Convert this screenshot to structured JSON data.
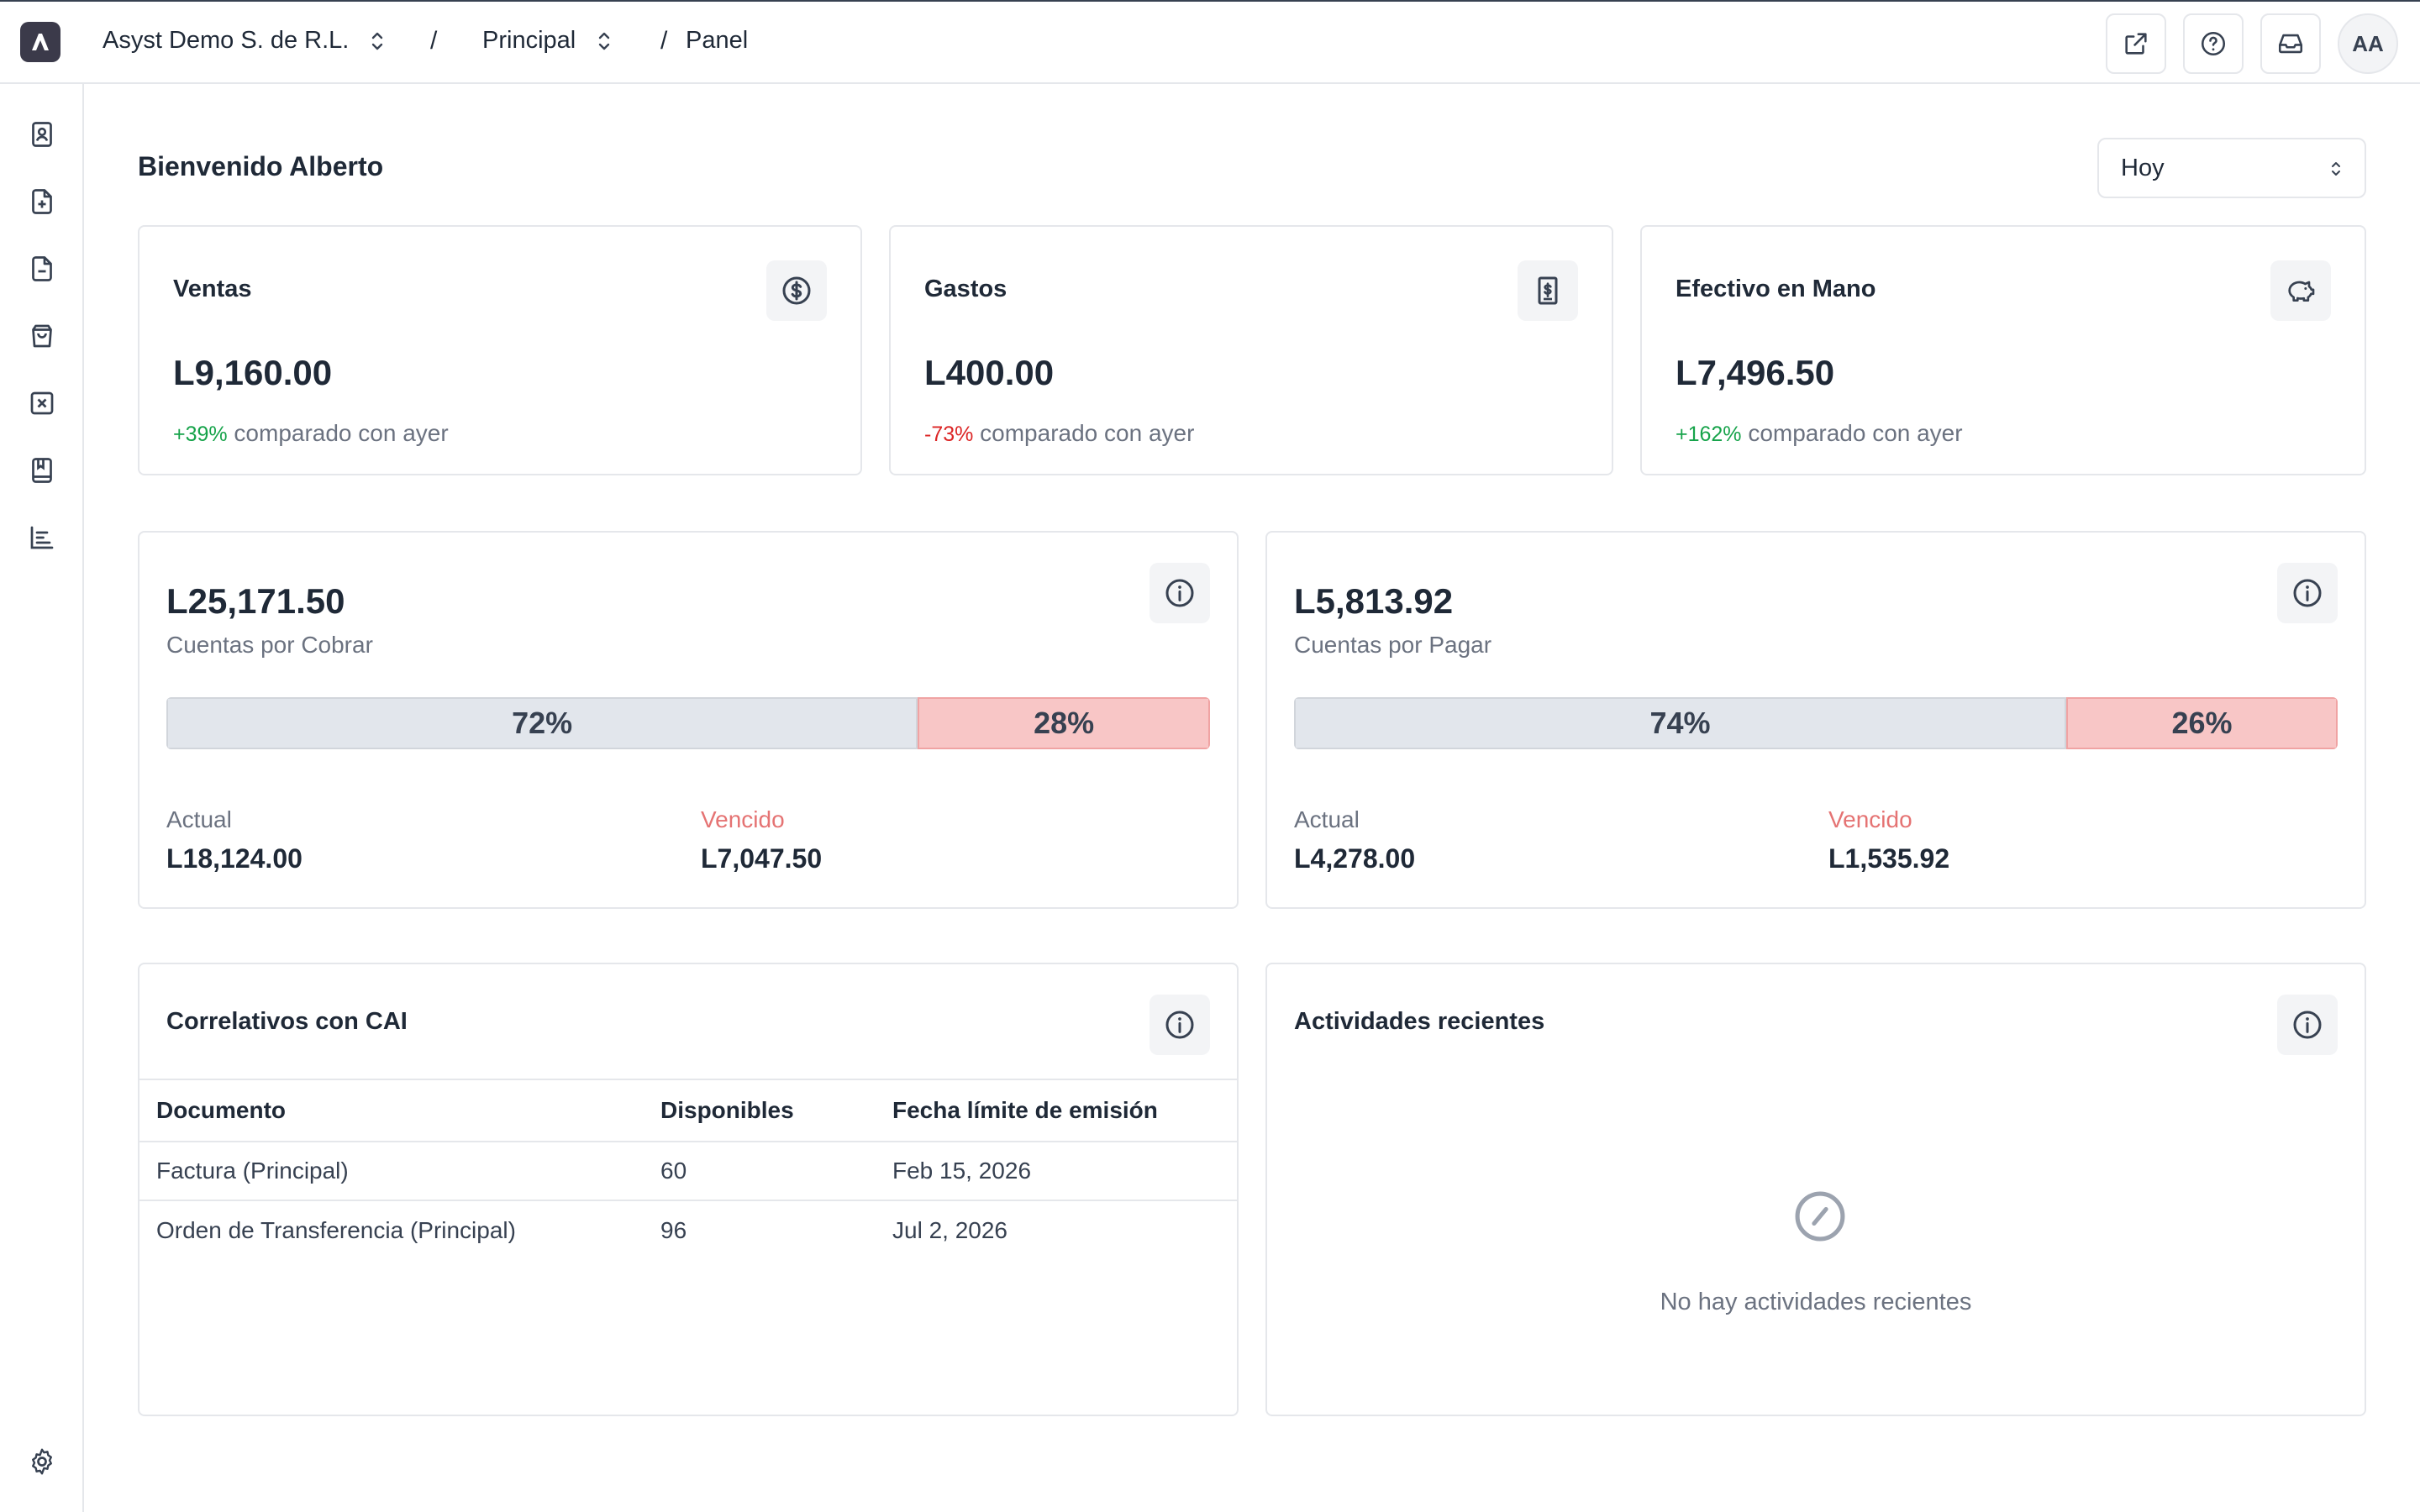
{
  "header": {
    "org_name": "Asyst Demo S. de R.L.",
    "separator": "/",
    "branch": "Principal",
    "page": "Panel",
    "avatar_initials": "AA"
  },
  "sidebar": {
    "icons": [
      "contact-book-icon",
      "file-plus-icon",
      "file-minus-icon",
      "shopping-bag-icon",
      "x-square-icon",
      "bookmark-book-icon",
      "bar-chart-icon"
    ],
    "settings_icon": "gear-icon"
  },
  "welcome": "Bienvenido Alberto",
  "period": {
    "selected": "Hoy"
  },
  "kpis": [
    {
      "title": "Ventas",
      "value": "L9,160.00",
      "change": "+39%",
      "change_dir": "up",
      "comparison": "comparado con ayer",
      "icon": "dollar-circle-icon"
    },
    {
      "title": "Gastos",
      "value": "L400.00",
      "change": "-73%",
      "change_dir": "down",
      "comparison": "comparado con ayer",
      "icon": "receipt-icon"
    },
    {
      "title": "Efectivo en Mano",
      "value": "L7,496.50",
      "change": "+162%",
      "change_dir": "up",
      "comparison": "comparado con ayer",
      "icon": "piggy-bank-icon"
    }
  ],
  "receivables": {
    "total": "L25,171.50",
    "label": "Cuentas por Cobrar",
    "current_pct": 72,
    "overdue_pct": 28,
    "current_pct_label": "72%",
    "overdue_pct_label": "28%",
    "current_label": "Actual",
    "current_value": "L18,124.00",
    "overdue_label": "Vencido",
    "overdue_value": "L7,047.50"
  },
  "payables": {
    "total": "L5,813.92",
    "label": "Cuentas por Pagar",
    "current_pct": 74,
    "overdue_pct": 26,
    "current_pct_label": "74%",
    "overdue_pct_label": "26%",
    "current_label": "Actual",
    "current_value": "L4,278.00",
    "overdue_label": "Vencido",
    "overdue_value": "L1,535.92"
  },
  "cai": {
    "title": "Correlativos con CAI",
    "columns": [
      "Documento",
      "Disponibles",
      "Fecha límite de emisión"
    ],
    "rows": [
      [
        "Factura (Principal)",
        "60",
        "Feb 15, 2026"
      ],
      [
        "Orden de Transferencia (Principal)",
        "96",
        "Jul 2, 2026"
      ]
    ]
  },
  "activities": {
    "title": "Actividades recientes",
    "empty_text": "No hay actividades recientes"
  },
  "colors": {
    "positive": "#16a34a",
    "negative": "#dc2626",
    "bar_current": "#e2e6ec",
    "bar_overdue": "#f8c6c6"
  }
}
